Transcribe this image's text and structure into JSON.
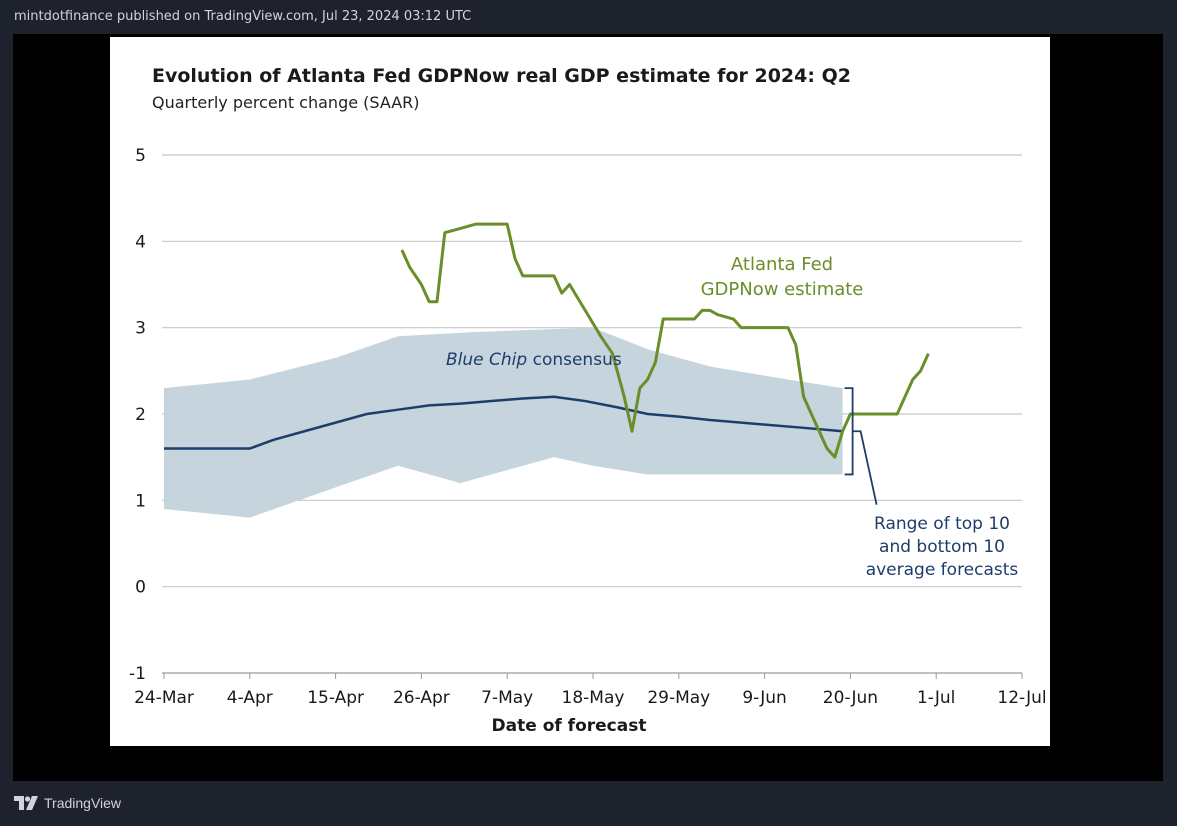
{
  "header": {
    "text": "mintdotfinance published on TradingView.com, Jul 23, 2024 03:12 UTC"
  },
  "footer": {
    "brand": "TradingView",
    "logo_icon": "tradingview-logo-icon"
  },
  "colors": {
    "gdpnow": "#6a8e2a",
    "consensus_line": "#1f3d6b",
    "range_fill": "#c6d4dd",
    "annotation": "#1f3d6b",
    "grid": "#c8c8c8"
  },
  "chart_data": {
    "type": "line",
    "title": "Evolution of Atlanta Fed GDPNow real GDP estimate for 2024: Q2",
    "subtitle": "Quarterly percent change (SAAR)",
    "xlabel": "Date of forecast",
    "ylabel": "",
    "ylim": [
      -1,
      5
    ],
    "xlim": [
      0,
      108
    ],
    "x_unit": "days since 24-Mar",
    "yticks": [
      5,
      4,
      3,
      2,
      1,
      0,
      -1
    ],
    "xticks": [
      {
        "x": 0,
        "label": "24-Mar"
      },
      {
        "x": 11,
        "label": "4-Apr"
      },
      {
        "x": 22,
        "label": "15-Apr"
      },
      {
        "x": 33,
        "label": "26-Apr"
      },
      {
        "x": 44,
        "label": "7-May"
      },
      {
        "x": 55,
        "label": "18-May"
      },
      {
        "x": 66,
        "label": "29-May"
      },
      {
        "x": 77,
        "label": "9-Jun"
      },
      {
        "x": 88,
        "label": "20-Jun"
      },
      {
        "x": 99,
        "label": "1-Jul"
      },
      {
        "x": 110,
        "label": "12-Jul"
      }
    ],
    "grid": true,
    "series": [
      {
        "name": "Atlanta Fed GDPNow estimate",
        "label_lines": [
          "Atlanta Fed",
          "GDPNow estimate"
        ],
        "kind": "line",
        "points": [
          [
            30.5,
            3.9
          ],
          [
            31.5,
            3.7
          ],
          [
            33,
            3.5
          ],
          [
            34,
            3.3
          ],
          [
            35,
            3.3
          ],
          [
            36,
            4.1
          ],
          [
            38,
            4.15
          ],
          [
            40,
            4.2
          ],
          [
            42,
            4.2
          ],
          [
            44,
            4.2
          ],
          [
            45,
            3.8
          ],
          [
            46,
            3.6
          ],
          [
            48,
            3.6
          ],
          [
            50,
            3.6
          ],
          [
            51,
            3.4
          ],
          [
            52,
            3.5
          ],
          [
            54,
            3.2
          ],
          [
            56,
            2.9
          ],
          [
            57.5,
            2.7
          ],
          [
            59,
            2.2
          ],
          [
            60,
            1.8
          ],
          [
            61,
            2.3
          ],
          [
            62,
            2.4
          ],
          [
            63,
            2.6
          ],
          [
            64,
            3.1
          ],
          [
            66,
            3.1
          ],
          [
            68,
            3.1
          ],
          [
            69,
            3.2
          ],
          [
            70,
            3.2
          ],
          [
            71,
            3.15
          ],
          [
            73,
            3.1
          ],
          [
            74,
            3.0
          ],
          [
            76,
            3.0
          ],
          [
            78,
            3.0
          ],
          [
            80,
            3.0
          ],
          [
            81,
            2.8
          ],
          [
            82,
            2.2
          ],
          [
            83,
            2.0
          ],
          [
            84,
            1.8
          ],
          [
            85,
            1.6
          ],
          [
            86,
            1.5
          ],
          [
            87,
            1.8
          ],
          [
            88,
            2.0
          ],
          [
            90,
            2.0
          ],
          [
            93,
            2.0
          ],
          [
            94,
            2.0
          ],
          [
            95,
            2.2
          ],
          [
            96,
            2.4
          ],
          [
            97,
            2.5
          ],
          [
            98,
            2.7
          ]
        ]
      },
      {
        "name": "Blue Chip consensus",
        "label_lines": [
          "Blue Chip",
          "consensus"
        ],
        "kind": "line",
        "points": [
          [
            0,
            1.6
          ],
          [
            11,
            1.6
          ],
          [
            14,
            1.7
          ],
          [
            18,
            1.8
          ],
          [
            22,
            1.9
          ],
          [
            26,
            2.0
          ],
          [
            30,
            2.05
          ],
          [
            34,
            2.1
          ],
          [
            38,
            2.12
          ],
          [
            42,
            2.15
          ],
          [
            46,
            2.18
          ],
          [
            50,
            2.2
          ],
          [
            54,
            2.15
          ],
          [
            58,
            2.08
          ],
          [
            62,
            2.0
          ],
          [
            66,
            1.97
          ],
          [
            70,
            1.93
          ],
          [
            74,
            1.9
          ],
          [
            78,
            1.87
          ],
          [
            82,
            1.84
          ],
          [
            87,
            1.8
          ]
        ]
      },
      {
        "name": "Range of top 10 and bottom 10 average forecasts",
        "label_lines": [
          "Range of top 10",
          "and bottom 10",
          "average forecasts"
        ],
        "kind": "band",
        "upper": [
          [
            0,
            2.3
          ],
          [
            11,
            2.4
          ],
          [
            22,
            2.65
          ],
          [
            30,
            2.9
          ],
          [
            40,
            2.95
          ],
          [
            55,
            3.0
          ],
          [
            62,
            2.75
          ],
          [
            70,
            2.55
          ],
          [
            80,
            2.4
          ],
          [
            87,
            2.3
          ]
        ],
        "lower": [
          [
            0,
            0.9
          ],
          [
            11,
            0.8
          ],
          [
            22,
            1.15
          ],
          [
            30,
            1.4
          ],
          [
            34,
            1.3
          ],
          [
            38,
            1.2
          ],
          [
            42,
            1.3
          ],
          [
            46,
            1.4
          ],
          [
            50,
            1.5
          ],
          [
            55,
            1.4
          ],
          [
            62,
            1.3
          ],
          [
            70,
            1.3
          ],
          [
            80,
            1.3
          ],
          [
            87,
            1.3
          ]
        ]
      }
    ]
  }
}
